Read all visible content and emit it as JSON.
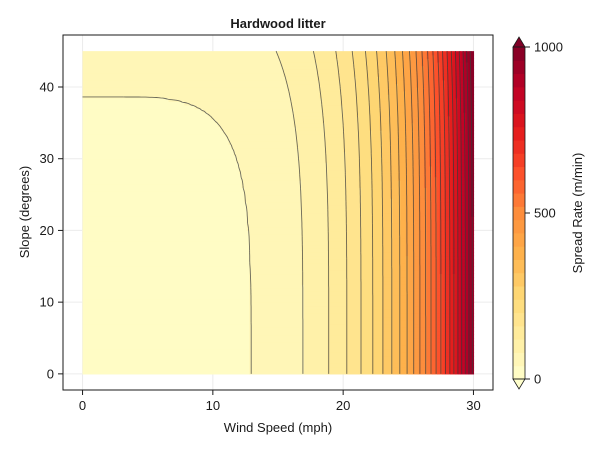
{
  "chart_data": {
    "type": "heatmap",
    "subtype": "filled-contour",
    "title": "Hardwood litter",
    "xlabel": "Wind Speed (mph)",
    "ylabel": "Slope (degrees)",
    "xlim": [
      -1.5,
      31.5
    ],
    "ylim": [
      -2.25,
      47.25
    ],
    "x_range": [
      0,
      30
    ],
    "y_range": [
      0,
      45
    ],
    "x_ticks": [
      "0",
      "10",
      "20",
      "30"
    ],
    "y_ticks": [
      "0",
      "10",
      "20",
      "30",
      "40"
    ],
    "colorbar": {
      "label": "Spread Rate (m/min)",
      "range": [
        0,
        1000
      ],
      "ticks": [
        "0",
        "500",
        "1000"
      ],
      "colormap": [
        "#ffffcc",
        "#ffeda0",
        "#fed976",
        "#feb24c",
        "#fd8d3c",
        "#fc4e2a",
        "#e31a1c",
        "#bd0026",
        "#800026"
      ],
      "under_color": "#ffffcc",
      "over_color": "#800026",
      "extend": "both"
    },
    "contour_levels": [
      0,
      40,
      80,
      120,
      160,
      200,
      240,
      280,
      320,
      360,
      400,
      440,
      480,
      520,
      560,
      600,
      640,
      680,
      720,
      760,
      800,
      840,
      880,
      920,
      960,
      1000
    ],
    "wind_speed_at_lowest_contour_zero_slope": 12.9,
    "slope_at_lowest_contour_zero_wind": 38.6,
    "max_spread_rate_at": {
      "wind_speed": 30,
      "slope": 45,
      "value": 1000
    },
    "grid": true
  }
}
